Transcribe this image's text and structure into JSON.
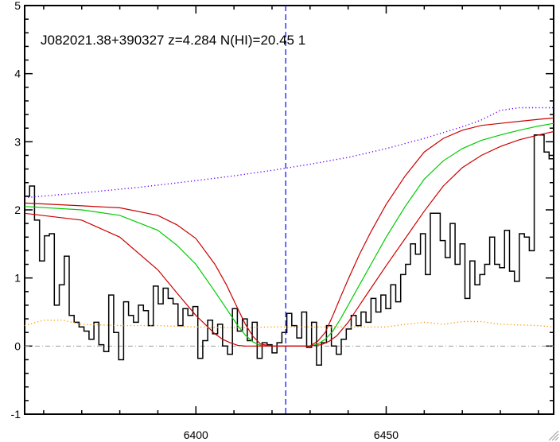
{
  "chart_data": {
    "type": "line",
    "title": "J082021.38+390327 z=4.284 N(HI)=20.45 1",
    "xlabel": "",
    "ylabel": "",
    "xlim": [
      6355,
      6494
    ],
    "ylim": [
      -1,
      5
    ],
    "x_ticks": [
      6400,
      6450
    ],
    "y_ticks": [
      -1,
      0,
      1,
      2,
      3,
      4,
      5
    ],
    "grid": false,
    "legend": "none",
    "vertical_marker": {
      "x": 6423.6,
      "color": "#0000ff",
      "style": "dashed"
    },
    "zero_line": {
      "y": 0,
      "color": "#999999",
      "style": "dash-dot"
    },
    "series": [
      {
        "style": "histogram",
        "color": "#000000",
        "x": [
          6355.0,
          6356.3,
          6357.6,
          6358.9,
          6360.2,
          6361.5,
          6362.8,
          6364.1,
          6365.4,
          6366.7,
          6368.0,
          6369.3,
          6370.6,
          6371.9,
          6373.2,
          6374.5,
          6375.8,
          6377.1,
          6378.4,
          6379.7,
          6381.0,
          6382.3,
          6383.6,
          6384.9,
          6386.2,
          6387.5,
          6388.8,
          6390.1,
          6391.4,
          6392.7,
          6394.0,
          6395.3,
          6396.6,
          6397.9,
          6399.2,
          6400.5,
          6401.8,
          6403.1,
          6404.4,
          6405.7,
          6407.0,
          6408.3,
          6409.6,
          6410.9,
          6412.2,
          6413.5,
          6414.8,
          6416.1,
          6417.4,
          6418.7,
          6420.0,
          6421.3,
          6422.6,
          6423.9,
          6425.2,
          6426.5,
          6427.8,
          6429.1,
          6430.4,
          6431.7,
          6433.0,
          6434.3,
          6435.6,
          6436.9,
          6438.2,
          6439.5,
          6440.8,
          6442.1,
          6443.4,
          6444.7,
          6446.0,
          6447.3,
          6448.6,
          6449.9,
          6451.2,
          6452.5,
          6453.8,
          6455.1,
          6456.4,
          6457.7,
          6459.0,
          6460.3,
          6461.6,
          6462.9,
          6464.2,
          6465.5,
          6466.8,
          6468.1,
          6469.4,
          6470.7,
          6472.0,
          6473.3,
          6474.6,
          6475.9,
          6477.2,
          6478.5,
          6479.8,
          6481.1,
          6482.4,
          6483.7,
          6485.0,
          6486.3,
          6487.6,
          6488.9,
          6490.2,
          6491.5,
          6492.8
        ],
        "values": [
          2.2,
          2.35,
          1.85,
          1.25,
          1.62,
          1.65,
          0.6,
          0.9,
          1.32,
          0.45,
          0.35,
          0.28,
          0.22,
          0.1,
          0.35,
          0.02,
          -0.08,
          0.75,
          0.2,
          -0.2,
          0.65,
          0.45,
          0.35,
          0.6,
          0.52,
          0.3,
          0.88,
          0.62,
          0.85,
          0.7,
          0.62,
          0.3,
          0.55,
          0.45,
          0.58,
          -0.18,
          0.08,
          0.38,
          0.18,
          0.32,
          0.0,
          -0.12,
          0.55,
          0.22,
          0.4,
          0.08,
          0.35,
          -0.18,
          0.05,
          0.02,
          -0.1,
          0.05,
          0.2,
          0.48,
          0.3,
          0.12,
          0.5,
          -0.02,
          0.35,
          -0.28,
          0.05,
          0.3,
          0.0,
          -0.12,
          0.1,
          0.25,
          0.45,
          0.3,
          0.5,
          0.35,
          0.7,
          0.5,
          0.75,
          0.55,
          0.9,
          0.65,
          1.05,
          1.2,
          1.5,
          1.35,
          1.65,
          1.05,
          1.95,
          1.95,
          1.55,
          1.3,
          1.8,
          1.2,
          1.5,
          0.7,
          1.25,
          0.9,
          1.05,
          1.2,
          1.6,
          1.2,
          1.15,
          1.7,
          1.1,
          0.95,
          1.65,
          1.6,
          1.4,
          3.1,
          3.1,
          2.85,
          2.75
        ]
      },
      {
        "style": "line",
        "color": "#00cc00",
        "x": [
          6355,
          6370,
          6380,
          6390,
          6395,
          6400,
          6405,
          6408,
          6411,
          6413,
          6415,
          6417,
          6420,
          6430,
          6432,
          6434,
          6436,
          6438,
          6440,
          6443,
          6446,
          6450,
          6455,
          6460,
          6465,
          6470,
          6475,
          6480,
          6485,
          6490,
          6494
        ],
        "values": [
          2.05,
          2.0,
          1.92,
          1.7,
          1.48,
          1.2,
          0.8,
          0.55,
          0.3,
          0.16,
          0.06,
          0.01,
          0.0,
          0.0,
          0.03,
          0.1,
          0.22,
          0.4,
          0.6,
          0.9,
          1.2,
          1.6,
          2.05,
          2.45,
          2.72,
          2.9,
          3.02,
          3.1,
          3.17,
          3.23,
          3.27
        ]
      },
      {
        "style": "line",
        "color": "#cc0000",
        "x": [
          6355,
          6370,
          6380,
          6390,
          6395,
          6400,
          6405,
          6408,
          6411,
          6413,
          6415,
          6417,
          6420,
          6430,
          6432,
          6434,
          6436,
          6438,
          6440,
          6443,
          6446,
          6450,
          6455,
          6460,
          6465,
          6470,
          6475,
          6480,
          6485,
          6490,
          6494
        ],
        "values": [
          2.1,
          2.06,
          2.03,
          1.92,
          1.78,
          1.58,
          1.2,
          0.9,
          0.55,
          0.32,
          0.14,
          0.03,
          0.0,
          0.0,
          0.07,
          0.2,
          0.45,
          0.72,
          0.98,
          1.35,
          1.68,
          2.08,
          2.5,
          2.85,
          3.05,
          3.17,
          3.24,
          3.27,
          3.3,
          3.33,
          3.35
        ]
      },
      {
        "style": "line",
        "color": "#cc0000",
        "x": [
          6355,
          6370,
          6380,
          6390,
          6395,
          6400,
          6405,
          6407,
          6409,
          6411,
          6413,
          6415,
          6420,
          6430,
          6433,
          6435,
          6437,
          6440,
          6443,
          6446,
          6450,
          6455,
          6460,
          6465,
          6470,
          6475,
          6480,
          6485,
          6490,
          6494
        ],
        "values": [
          1.95,
          1.85,
          1.6,
          1.12,
          0.78,
          0.45,
          0.18,
          0.1,
          0.05,
          0.01,
          0.0,
          0.0,
          0.0,
          0.0,
          0.02,
          0.07,
          0.15,
          0.35,
          0.6,
          0.85,
          1.18,
          1.58,
          1.98,
          2.35,
          2.62,
          2.8,
          2.93,
          3.03,
          3.1,
          3.15
        ]
      },
      {
        "style": "dotted",
        "color": "#6600ff",
        "x": [
          6355,
          6370,
          6385,
          6400,
          6410,
          6420,
          6430,
          6440,
          6450,
          6460,
          6470,
          6475,
          6480,
          6485,
          6490,
          6494
        ],
        "values": [
          2.18,
          2.25,
          2.33,
          2.43,
          2.5,
          2.58,
          2.67,
          2.77,
          2.9,
          3.05,
          3.22,
          3.32,
          3.46,
          3.5,
          3.5,
          3.5
        ]
      },
      {
        "style": "dotted",
        "color": "#ff9900",
        "x": [
          6355,
          6360,
          6365,
          6370,
          6380,
          6390,
          6400,
          6410,
          6420,
          6430,
          6440,
          6450,
          6455,
          6460,
          6465,
          6470,
          6475,
          6480,
          6490,
          6494
        ],
        "values": [
          0.3,
          0.38,
          0.38,
          0.32,
          0.3,
          0.3,
          0.28,
          0.27,
          0.28,
          0.28,
          0.28,
          0.28,
          0.32,
          0.35,
          0.32,
          0.36,
          0.36,
          0.32,
          0.3,
          0.28
        ]
      }
    ]
  }
}
